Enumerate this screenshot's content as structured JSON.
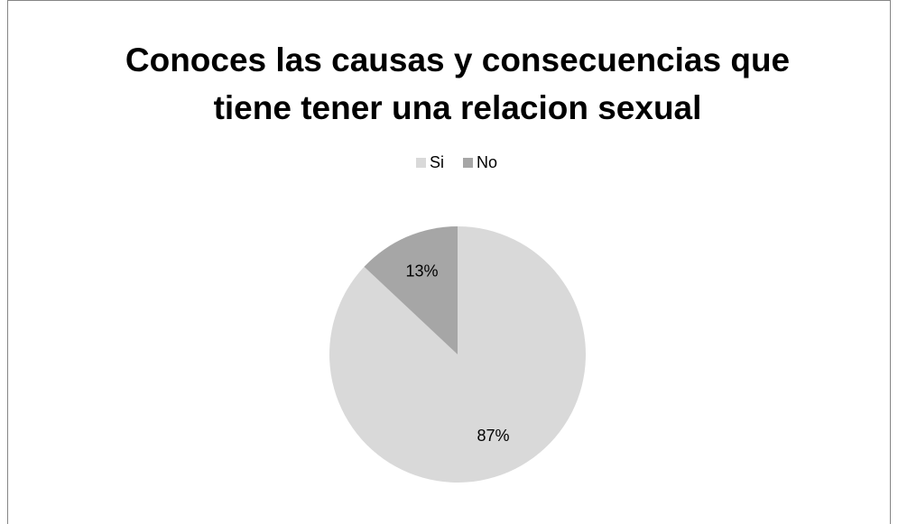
{
  "chart_data": {
    "type": "pie",
    "title": "Conoces las causas y consecuencias que tiene tener una relacion sexual",
    "categories": [
      "Si",
      "No"
    ],
    "values": [
      87,
      13
    ],
    "value_labels": [
      "87%",
      "13%"
    ],
    "colors": [
      "#d9d9d9",
      "#a6a6a6"
    ],
    "legend": "top"
  }
}
